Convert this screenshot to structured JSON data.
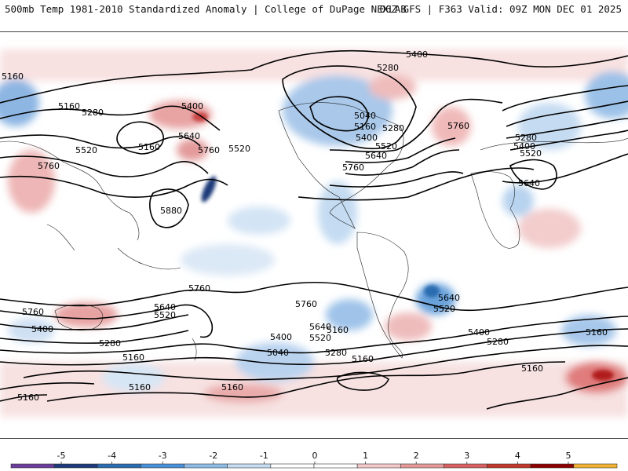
{
  "header": {
    "left_title": "500mb Temp 1981-2010 Standardized Anomaly | College of DuPage NEXLAB",
    "right_title": "06Z GFS | F363 Valid: 09Z MON DEC 01 2025"
  },
  "contour_labels": [
    "5400",
    "5280",
    "5160",
    "5280",
    "5400",
    "5640",
    "5520",
    "5760",
    "5520",
    "5160",
    "5760",
    "5880",
    "5040",
    "5160",
    "5280",
    "5400",
    "5520",
    "5640",
    "5760",
    "5760",
    "5280",
    "5400",
    "5520",
    "5640",
    "5160",
    "5760",
    "5640",
    "5520",
    "5760",
    "5760",
    "5640",
    "5520",
    "5400",
    "5280",
    "5160",
    "5040",
    "5160",
    "5400",
    "5280",
    "5160",
    "5160",
    "5160",
    "5640",
    "5520",
    "5400",
    "5280",
    "5160",
    "5160",
    "5160"
  ],
  "colorbar": {
    "ticks": [
      "-5",
      "-4",
      "-3",
      "-2",
      "-1",
      "0",
      "1",
      "2",
      "3",
      "4",
      "5"
    ],
    "colors": [
      "#6a3d9a",
      "#1f3a78",
      "#2b6cb0",
      "#4a90d9",
      "#8fbbe6",
      "#c6dcf2",
      "#ffffff",
      "#ffffff",
      "#f3c9c9",
      "#e79a9a",
      "#d96060",
      "#c0392b",
      "#8b0000",
      "#f2b233"
    ]
  }
}
